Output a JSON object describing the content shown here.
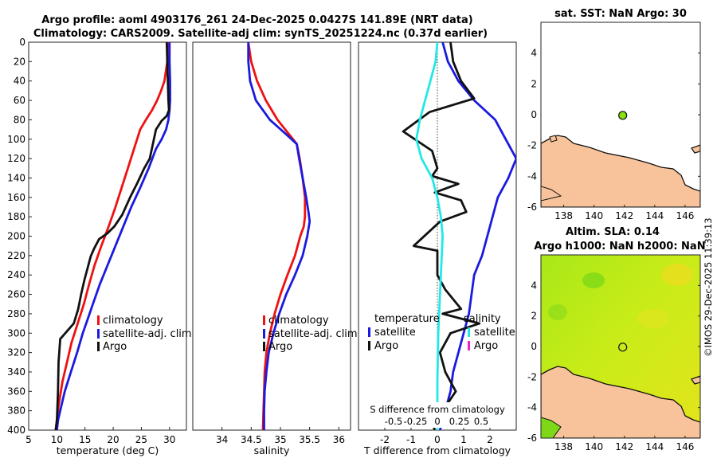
{
  "colors": {
    "climatology": "#ee1111",
    "satellite": "#1a1ae0",
    "argo": "#111111",
    "salinity_sat": "#22e8e8",
    "salinity_argo": "#ee22cc",
    "land": "#f8c39a",
    "argo_marker": "#88e010",
    "sla_field": "#c8ec18"
  },
  "chart_data": [
    {
      "type": "line",
      "id": "temperature_profile",
      "title": "Argo profile: aoml 4903176_261 24-Dec-2025 0.0427S 141.89E (NRT data)",
      "subtitle": "Climatology: CARS2009. Satellite-adj clim: synTS_20251224.nc (0.37d earlier)",
      "xlabel": "temperature (deg C)",
      "ylabel": "",
      "xlim": [
        5,
        33
      ],
      "ylim": [
        0,
        400
      ],
      "x_ticks": [
        "5",
        "10",
        "15",
        "20",
        "25",
        "30"
      ],
      "y_ticks": [
        "0",
        "20",
        "40",
        "60",
        "80",
        "100",
        "120",
        "140",
        "160",
        "180",
        "200",
        "220",
        "240",
        "260",
        "280",
        "300",
        "320",
        "340",
        "360",
        "380",
        "400"
      ],
      "legend": [
        "climatology",
        "satellite-adj. clim",
        "Argo"
      ],
      "legend_position": "lower-right",
      "series": [
        {
          "name": "climatology",
          "color": "climatology",
          "x": [
            29.8,
            29.6,
            29.1,
            28.5,
            27.8,
            26.9,
            25.8,
            24.8,
            23.7,
            22.6,
            21.5,
            20.4,
            19.2,
            17.9,
            16.7,
            15.7,
            14.8,
            13.7,
            12.6,
            11.8,
            11.0,
            10.3,
            9.8
          ],
          "depth": [
            0,
            20,
            40,
            50,
            60,
            70,
            80,
            90,
            110,
            130,
            150,
            170,
            190,
            210,
            230,
            250,
            270,
            290,
            310,
            330,
            350,
            375,
            400
          ]
        },
        {
          "name": "satellite-adj. clim",
          "color": "satellite",
          "x": [
            30.0,
            30.0,
            30.1,
            30.1,
            30.0,
            29.8,
            29.4,
            28.6,
            27.6,
            26.3,
            24.8,
            23.2,
            21.8,
            20.4,
            19.0,
            17.6,
            16.4,
            15.5,
            14.6,
            13.6,
            12.5,
            11.4,
            10.6,
            10.2,
            10.0
          ],
          "depth": [
            0,
            20,
            40,
            60,
            70,
            80,
            90,
            100,
            110,
            130,
            150,
            170,
            190,
            210,
            230,
            250,
            270,
            285,
            300,
            320,
            340,
            360,
            380,
            390,
            400
          ]
        },
        {
          "name": "Argo",
          "color": "argo",
          "x": [
            29.5,
            29.6,
            29.7,
            29.8,
            29.9,
            29.5,
            28.6,
            27.6,
            26.5,
            25.5,
            24.3,
            23.0,
            21.6,
            20.2,
            19.0,
            17.5,
            16.6,
            16.0,
            14.9,
            14.3,
            13.8,
            13.0,
            10.6,
            10.3,
            10.2,
            10.0,
            9.8
          ],
          "depth": [
            0,
            20,
            40,
            60,
            70,
            76,
            81,
            90,
            120,
            130,
            145,
            160,
            178,
            190,
            197,
            203,
            213,
            221,
            245,
            260,
            275,
            290,
            306,
            330,
            360,
            390,
            400
          ]
        }
      ]
    },
    {
      "type": "line",
      "id": "salinity_profile",
      "xlabel": "salinity",
      "xlim": [
        33.5,
        36.2
      ],
      "ylim": [
        0,
        400
      ],
      "x_ticks": [
        "34",
        "34.5",
        "35",
        "35.5",
        "36"
      ],
      "legend": [
        "climatology",
        "satellite-adj. clim",
        "Argo"
      ],
      "legend_position": "lower-right",
      "series": [
        {
          "name": "climatology",
          "color": "climatology",
          "x": [
            34.45,
            34.5,
            34.6,
            34.75,
            34.95,
            35.15,
            35.28,
            35.33,
            35.38,
            35.42,
            35.42,
            35.4,
            35.34,
            35.25,
            35.12,
            35.0,
            34.9,
            34.82,
            34.76,
            34.73,
            34.72,
            34.71,
            34.7
          ],
          "depth": [
            0,
            20,
            40,
            60,
            80,
            95,
            105,
            120,
            140,
            160,
            180,
            190,
            200,
            220,
            240,
            260,
            280,
            300,
            320,
            340,
            360,
            380,
            400
          ]
        },
        {
          "name": "satellite-adj. clim",
          "color": "satellite",
          "x": [
            34.45,
            34.45,
            34.48,
            34.58,
            34.82,
            35.1,
            35.28,
            35.32,
            35.38,
            35.44,
            35.48,
            35.5,
            35.46,
            35.38,
            35.25,
            35.1,
            34.98,
            34.88,
            34.8,
            34.76,
            34.73,
            34.72,
            34.72
          ],
          "depth": [
            0,
            20,
            40,
            60,
            80,
            95,
            105,
            120,
            140,
            160,
            175,
            185,
            200,
            220,
            240,
            260,
            280,
            300,
            320,
            340,
            360,
            380,
            400
          ]
        }
      ]
    },
    {
      "type": "line",
      "id": "difference_profile",
      "xlabel": "T difference from climatology",
      "xlabel2": "S difference from climatology",
      "xlim": [
        -3,
        3
      ],
      "xlim2": [
        -0.9,
        0.9
      ],
      "ylim": [
        0,
        400
      ],
      "x_ticks": [
        "-2",
        "-1",
        "0",
        "1",
        "2"
      ],
      "x_ticks_salinity": [
        "-0.5",
        "-0.25",
        "0",
        "0.25",
        "0.5"
      ],
      "legend_temperature": {
        "header": "temperature",
        "entries": [
          "satellite",
          "Argo"
        ]
      },
      "legend_salinity": {
        "header": "salinity",
        "entries": [
          "satellite",
          "Argo"
        ]
      },
      "series": [
        {
          "name": "temperature satellite",
          "color": "satellite",
          "axis": "T",
          "x": [
            0.2,
            0.4,
            0.8,
            1.4,
            2.2,
            2.6,
            3.0,
            2.7,
            2.3,
            2.1,
            1.9,
            1.7,
            1.4,
            1.3,
            1.2,
            1.0,
            0.8,
            0.6,
            0.5,
            0.4,
            0.3,
            0.2,
            0.1
          ],
          "depth": [
            0,
            20,
            40,
            60,
            80,
            100,
            120,
            140,
            160,
            180,
            200,
            220,
            240,
            260,
            280,
            300,
            320,
            340,
            360,
            370,
            380,
            390,
            400
          ]
        },
        {
          "name": "temperature Argo",
          "color": "argo",
          "axis": "T",
          "x": [
            0.5,
            0.6,
            0.9,
            1.4,
            -0.3,
            -1.3,
            -0.2,
            0,
            -0.2,
            0.8,
            -0.1,
            0.9,
            1.1,
            0.1,
            -0.9,
            0,
            0,
            0.3,
            0.9,
            0.2,
            1.6,
            0.5,
            0.1,
            0.3,
            0.7,
            0.2,
            -0.2,
            -0.1
          ],
          "depth": [
            0,
            20,
            40,
            58,
            72,
            92,
            112,
            130,
            138,
            146,
            155,
            163,
            175,
            185,
            210,
            215,
            240,
            255,
            275,
            280,
            290,
            300,
            320,
            340,
            360,
            380,
            392,
            400
          ]
        },
        {
          "name": "salinity satellite",
          "color": "salinity_sat",
          "axis": "S",
          "x": [
            0,
            -0.02,
            -0.08,
            -0.14,
            -0.2,
            -0.24,
            -0.18,
            -0.06,
            0,
            0.04,
            0.06,
            0.05,
            0.04,
            0.03,
            0.02,
            0.01,
            0,
            0
          ],
          "depth": [
            0,
            20,
            40,
            60,
            80,
            100,
            120,
            140,
            160,
            180,
            200,
            220,
            240,
            260,
            280,
            300,
            350,
            400
          ]
        }
      ]
    },
    {
      "type": "heatmap",
      "id": "sst_map",
      "title": "sat. SST: NaN Argo: 30",
      "xlim": [
        136.5,
        147
      ],
      "ylim": [
        -6,
        6
      ],
      "x_ticks": [
        "138",
        "140",
        "142",
        "144",
        "146"
      ],
      "y_ticks": [
        "-6",
        "-4",
        "-2",
        "0",
        "2",
        "4"
      ],
      "argo_position": {
        "lon": 141.89,
        "lat": -0.0427
      }
    },
    {
      "type": "heatmap",
      "id": "sla_map",
      "title": "Altim. SLA: 0.14",
      "subtitle": "Argo h1000: NaN h2000: NaN",
      "xlim": [
        136.5,
        147
      ],
      "ylim": [
        -6,
        6
      ],
      "x_ticks": [
        "138",
        "140",
        "142",
        "144",
        "146"
      ],
      "y_ticks": [
        "-6",
        "-4",
        "-2",
        "0",
        "2",
        "4"
      ],
      "argo_position": {
        "lon": 141.89,
        "lat": -0.0427
      }
    }
  ],
  "watermark": "©IMOS 29-Dec-2025 11:39:13"
}
